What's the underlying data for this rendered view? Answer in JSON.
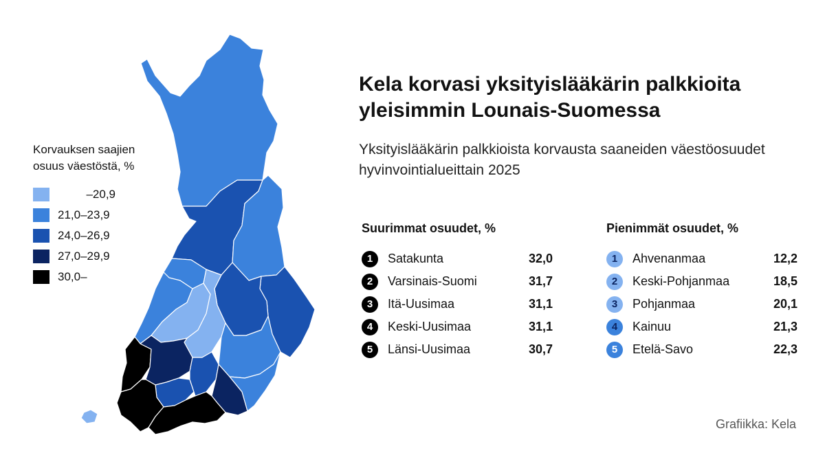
{
  "title": "Kela korvasi yksityislääkärin palkkioita yleisimmin Lounais-Suomessa",
  "subtitle": "Yksityislääkärin palkkioista korvausta saaneiden väestöosuudet hyvinvointialueittain 2025",
  "legend": {
    "title_line1": "Korvauksen saajien",
    "title_line2": "osuus väestöstä, %",
    "items": [
      {
        "label": "–20,9",
        "color": "#84b2f0"
      },
      {
        "label": "21,0–23,9",
        "color": "#3b82dc"
      },
      {
        "label": "24,0–26,9",
        "color": "#1a52b0"
      },
      {
        "label": "27,0–29,9",
        "color": "#0b2461"
      },
      {
        "label": "30,0–",
        "color": "#000000"
      }
    ]
  },
  "top_table": {
    "title": "Suurimmat osuudet, %",
    "rows": [
      {
        "rank": "1",
        "name": "Satakunta",
        "value": "32,0"
      },
      {
        "rank": "2",
        "name": "Varsinais-Suomi",
        "value": "31,7"
      },
      {
        "rank": "3",
        "name": "Itä-Uusimaa",
        "value": "31,1"
      },
      {
        "rank": "4",
        "name": "Keski-Uusimaa",
        "value": "31,1"
      },
      {
        "rank": "5",
        "name": "Länsi-Uusimaa",
        "value": "30,7"
      }
    ]
  },
  "bottom_table": {
    "title": "Pienimmät osuudet, %",
    "rows": [
      {
        "rank": "1",
        "name": "Ahvenanmaa",
        "value": "12,2",
        "color": "#84b2f0"
      },
      {
        "rank": "2",
        "name": "Keski-Pohjanmaa",
        "value": "18,5",
        "color": "#84b2f0"
      },
      {
        "rank": "3",
        "name": "Pohjanmaa",
        "value": "20,1",
        "color": "#84b2f0"
      },
      {
        "rank": "4",
        "name": "Kainuu",
        "value": "21,3",
        "color": "#3b82dc"
      },
      {
        "rank": "5",
        "name": "Etelä-Savo",
        "value": "22,3",
        "color": "#3b82dc"
      }
    ]
  },
  "credit": "Grafiikka: Kela",
  "map": {
    "regions": [
      {
        "name": "Lappi",
        "class": 1
      },
      {
        "name": "Pohjois-Pohjanmaa",
        "class": 2
      },
      {
        "name": "Kainuu",
        "class": 1
      },
      {
        "name": "Pohjois-Karjala",
        "class": 2
      },
      {
        "name": "Pohjois-Savo",
        "class": 2
      },
      {
        "name": "Keski-Suomi",
        "class": 1
      },
      {
        "name": "Etelä-Savo",
        "class": 1
      },
      {
        "name": "Keski-Pohjanmaa",
        "class": 0
      },
      {
        "name": "Pohjanmaa",
        "class": 0
      },
      {
        "name": "Etelä-Pohjanmaa",
        "class": 1
      },
      {
        "name": "Satakunta",
        "class": 4
      },
      {
        "name": "Pirkanmaa",
        "class": 3
      },
      {
        "name": "Kanta-Häme",
        "class": 2
      },
      {
        "name": "Päijät-Häme",
        "class": 2
      },
      {
        "name": "Kymenlaakso",
        "class": 3
      },
      {
        "name": "Etelä-Karjala",
        "class": 1
      },
      {
        "name": "Varsinais-Suomi",
        "class": 4
      },
      {
        "name": "Uusimaa",
        "class": 4
      },
      {
        "name": "Ahvenanmaa",
        "class": 0
      }
    ]
  }
}
